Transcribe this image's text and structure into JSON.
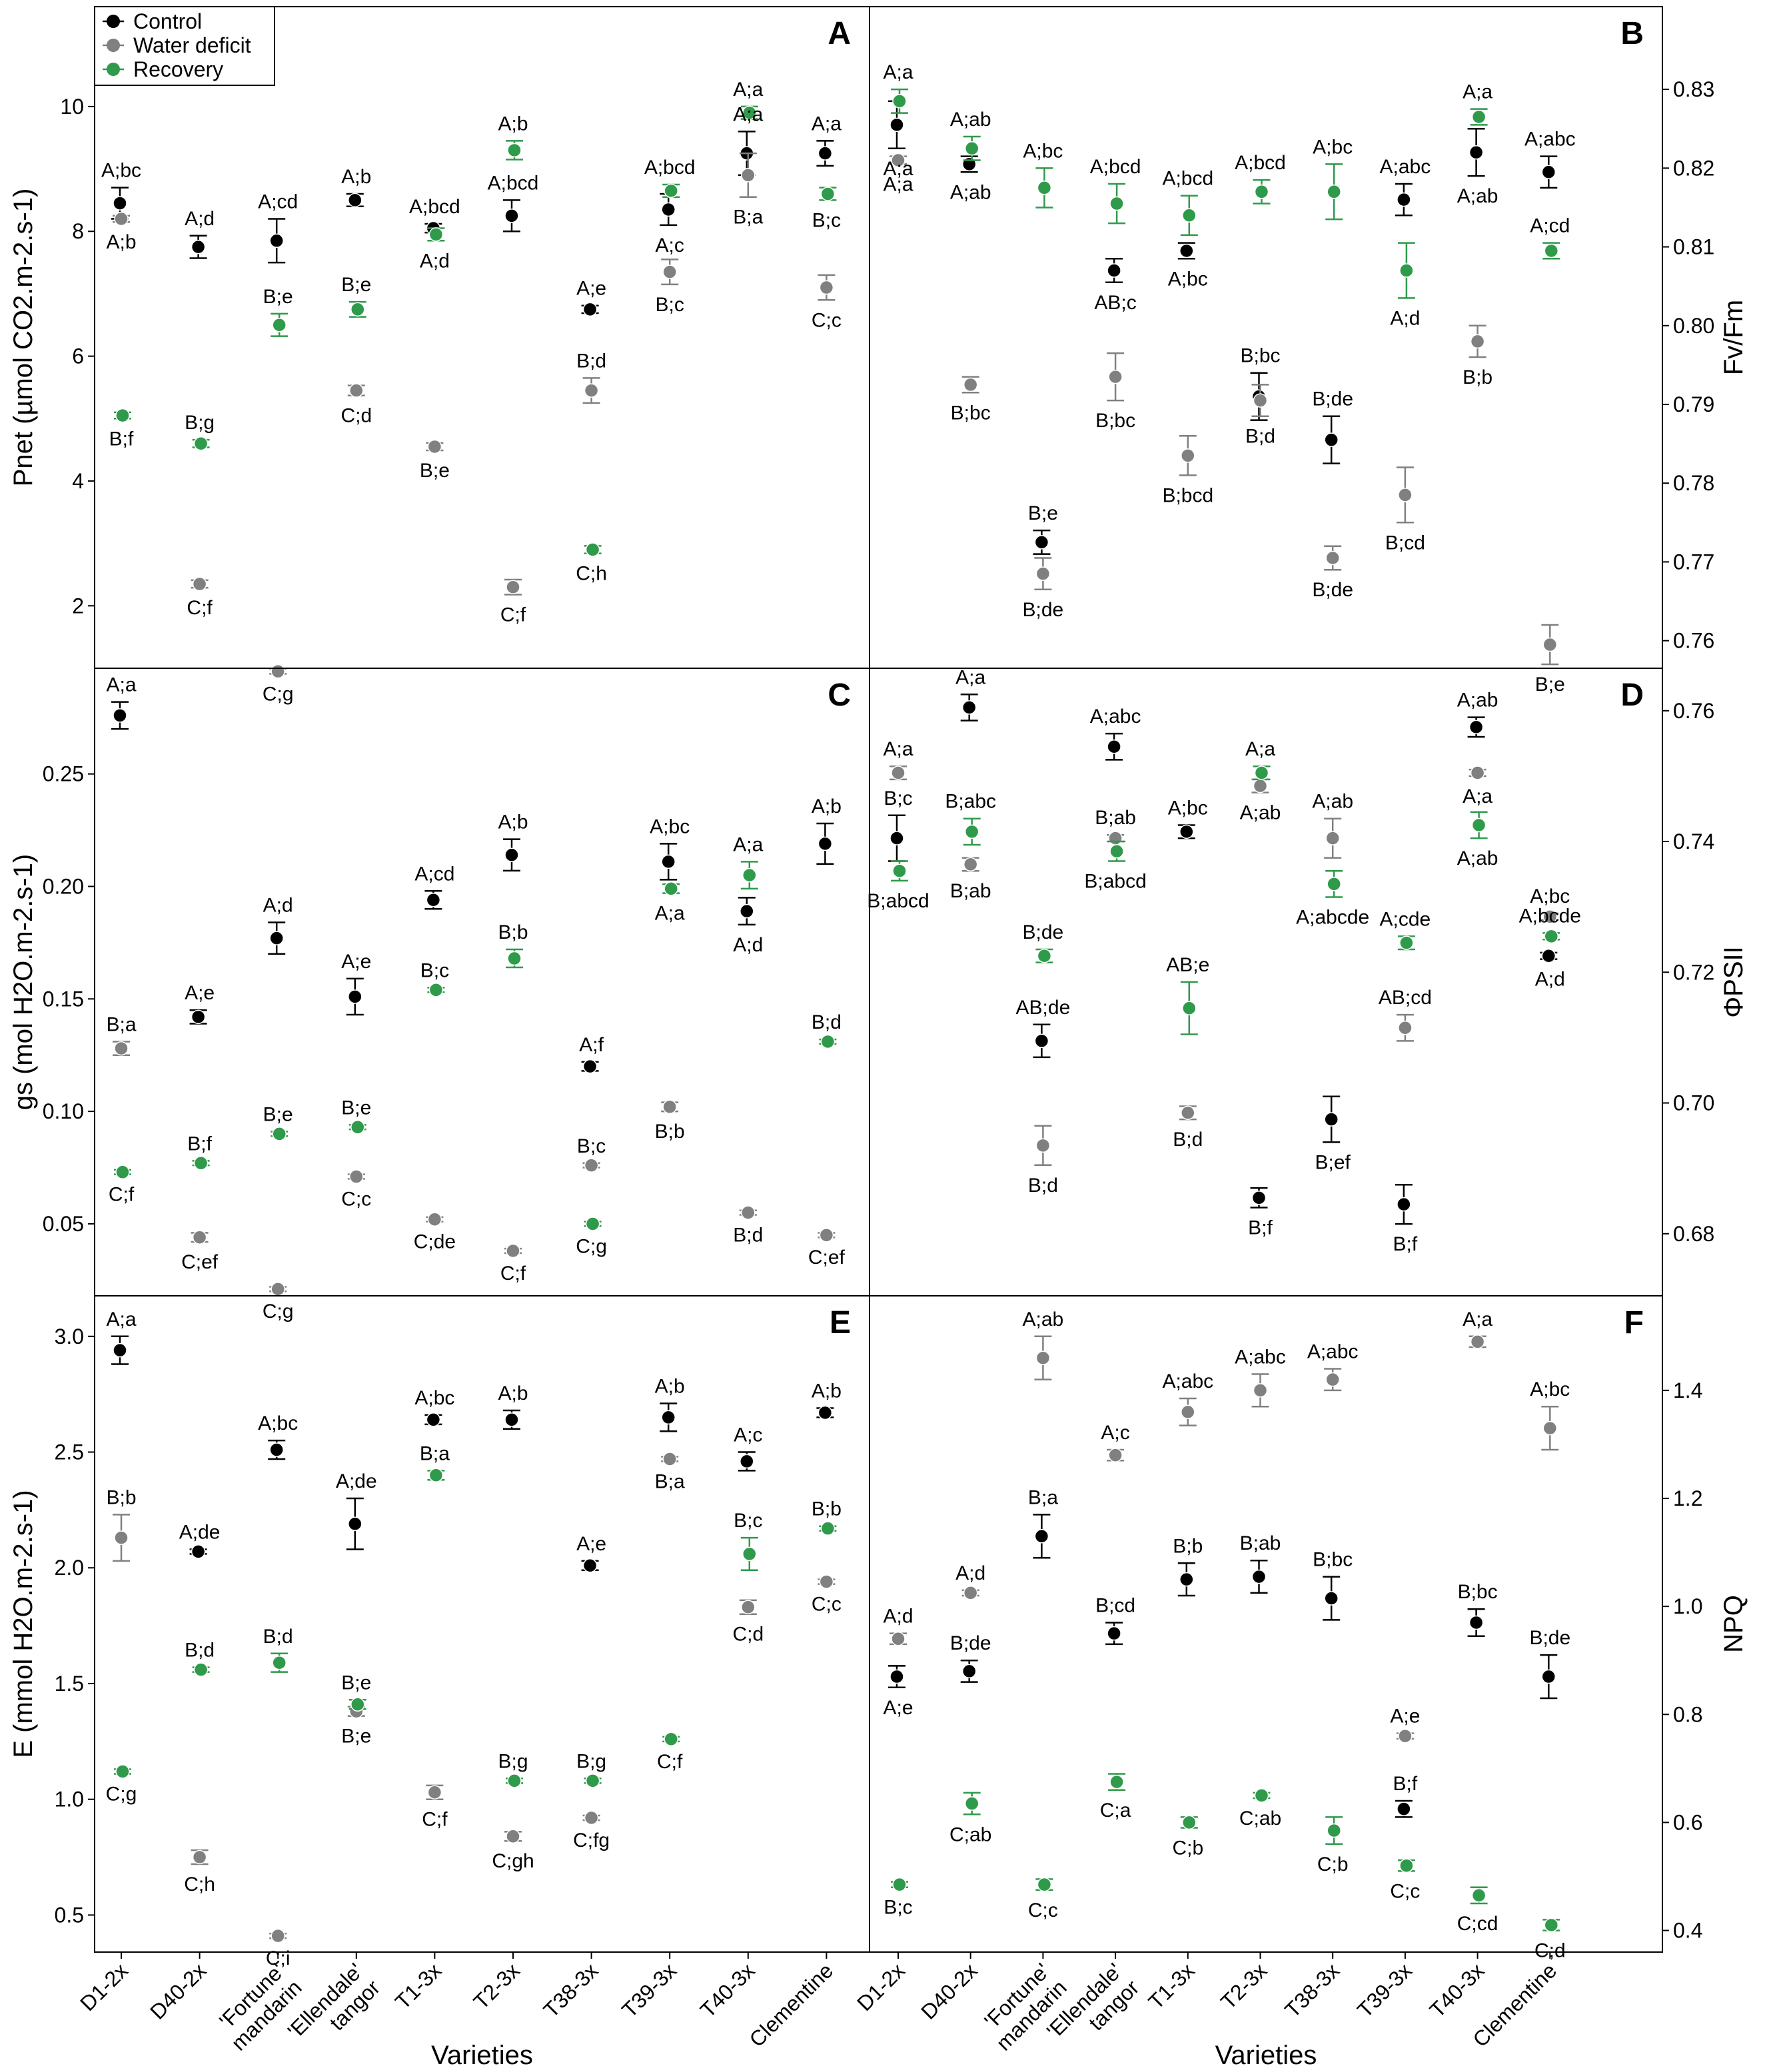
{
  "colors": {
    "control": "#000000",
    "water_deficit": "#808080",
    "recovery": "#2e9a4a"
  },
  "legend": {
    "placement": "top-left of panel A",
    "entries": [
      {
        "key": "control",
        "label": "Control"
      },
      {
        "key": "water_deficit",
        "label": "Water deficit"
      },
      {
        "key": "recovery",
        "label": "Recovery"
      }
    ]
  },
  "x_axis": {
    "title": "Varieties",
    "categories": [
      "D1-2x",
      "D40-2x",
      "'Fortune' mandarin",
      "'Ellendale' tangor",
      "T1-3x",
      "T2-3x",
      "T38-3x",
      "T39-3x",
      "T40-3x",
      "Clementine"
    ]
  },
  "chart_data": [
    {
      "panel": "A",
      "type": "scatter",
      "ylabel": "Pnet (µmol CO2.m-2.s-1)",
      "axis_side": "left",
      "ylim": [
        1,
        11.6
      ],
      "yticks": [
        2,
        4,
        6,
        8,
        10
      ],
      "series": [
        {
          "name": "Control",
          "values": [
            8.45,
            7.75,
            7.85,
            8.5,
            8.05,
            8.25,
            6.75,
            8.35,
            9.25,
            9.25
          ],
          "errors": [
            0.25,
            0.18,
            0.35,
            0.1,
            0.07,
            0.25,
            0.06,
            0.25,
            0.35,
            0.2
          ],
          "labels": [
            "A;bc",
            "A;d",
            "A;cd",
            "A;b",
            "A;bcd",
            "A;bcd",
            "A;e",
            "A;c",
            "A;a",
            "A;a"
          ]
        },
        {
          "name": "Water deficit",
          "values": [
            8.2,
            2.35,
            0.95,
            5.45,
            4.55,
            2.3,
            5.45,
            7.35,
            8.9,
            7.1
          ],
          "errors": [
            0.05,
            0.06,
            0.04,
            0.08,
            0.06,
            0.12,
            0.2,
            0.2,
            0.35,
            0.2
          ],
          "labels": [
            "A;b",
            "C;f",
            "C;g",
            "C;d",
            "B;e",
            "C;f",
            "B;d",
            "B;c",
            "B;a",
            "C;c"
          ]
        },
        {
          "name": "Recovery",
          "values": [
            5.05,
            4.6,
            6.5,
            6.75,
            7.95,
            9.3,
            2.9,
            8.65,
            9.9,
            8.6
          ],
          "errors": [
            0.05,
            0.06,
            0.18,
            0.12,
            0.1,
            0.15,
            0.06,
            0.1,
            0.1,
            0.1
          ],
          "labels": [
            "B;f",
            "B;g",
            "B;e",
            "B;e",
            "A;d",
            "A;b",
            "C;h",
            "A;bcd",
            "A;a",
            "B;c"
          ]
        }
      ]
    },
    {
      "panel": "B",
      "type": "scatter",
      "ylabel": "Fv/Fm",
      "axis_side": "right",
      "ylim": [
        0.7565,
        0.8405
      ],
      "yticks": [
        0.76,
        0.77,
        0.78,
        0.79,
        0.8,
        0.81,
        0.82,
        0.83
      ],
      "ytick_labels": [
        "0.76",
        "0.77",
        "0.78",
        "0.79",
        "0.80",
        "0.81",
        "0.82",
        "0.83"
      ],
      "series": [
        {
          "name": "Control",
          "values": [
            0.8255,
            0.8205,
            0.7725,
            0.807,
            0.8095,
            0.791,
            0.7855,
            0.816,
            0.822,
            0.8195
          ],
          "errors": [
            0.003,
            0.001,
            0.0015,
            0.0015,
            0.001,
            0.003,
            0.003,
            0.002,
            0.003,
            0.002
          ],
          "labels": [
            "A;a",
            "A;ab",
            "B;e",
            "AB;c",
            "A;bc",
            "B;bc",
            "B;de",
            "A;abc",
            "A;ab",
            "A;abc"
          ]
        },
        {
          "name": "Water deficit",
          "values": [
            0.821,
            0.7925,
            0.7685,
            0.7935,
            0.7835,
            0.7905,
            0.7705,
            0.7785,
            0.798,
            0.7595
          ],
          "errors": [
            0.0005,
            0.001,
            0.002,
            0.003,
            0.0025,
            0.002,
            0.0015,
            0.0035,
            0.002,
            0.0025
          ],
          "labels": [
            "A;a",
            "B;bc",
            "B;de",
            "B;bc",
            "B;bcd",
            "B;d",
            "B;de",
            "B;cd",
            "B;b",
            "B;e"
          ]
        },
        {
          "name": "Recovery",
          "values": [
            0.8285,
            0.8225,
            0.8175,
            0.8155,
            0.814,
            0.817,
            0.817,
            0.807,
            0.8265,
            0.8095
          ],
          "errors": [
            0.0015,
            0.0015,
            0.0025,
            0.0025,
            0.0025,
            0.0015,
            0.0035,
            0.0035,
            0.001,
            0.001
          ],
          "labels": [
            "A;a",
            "A;ab",
            "A;bc",
            "A;bcd",
            "A;bcd",
            "A;bcd",
            "A;bc",
            "A;d",
            "A;a",
            "A;cd"
          ]
        }
      ]
    },
    {
      "panel": "C",
      "type": "scatter",
      "ylabel": "gs (mol H2O.m-2.s-1)",
      "axis_side": "left",
      "ylim": [
        0.018,
        0.297
      ],
      "yticks": [
        0.05,
        0.1,
        0.15,
        0.2,
        0.25
      ],
      "ytick_labels": [
        "0.05",
        "0.10",
        "0.15",
        "0.20",
        "0.25"
      ],
      "series": [
        {
          "name": "Control",
          "values": [
            0.276,
            0.142,
            0.177,
            0.151,
            0.194,
            0.214,
            0.12,
            0.211,
            0.189,
            0.219
          ],
          "errors": [
            0.006,
            0.003,
            0.007,
            0.008,
            0.004,
            0.007,
            0.002,
            0.008,
            0.006,
            0.009
          ],
          "labels": [
            "A;a",
            "A;e",
            "A;d",
            "A;e",
            "A;cd",
            "A;b",
            "A;f",
            "A;bc",
            "A;d",
            "A;b"
          ]
        },
        {
          "name": "Water deficit",
          "values": [
            0.128,
            0.044,
            0.021,
            0.071,
            0.052,
            0.038,
            0.076,
            0.102,
            0.055,
            0.045
          ],
          "errors": [
            0.003,
            0.002,
            0.001,
            0.001,
            0.001,
            0.001,
            0.001,
            0.002,
            0.001,
            0.001
          ],
          "labels": [
            "B;a",
            "C;ef",
            "C;g",
            "C;c",
            "C;de",
            "C;f",
            "B;c",
            "B;b",
            "B;d",
            "C;ef"
          ]
        },
        {
          "name": "Recovery",
          "values": [
            0.073,
            0.077,
            0.09,
            0.093,
            0.154,
            0.168,
            0.05,
            0.199,
            0.205,
            0.131
          ],
          "errors": [
            0.001,
            0.001,
            0.001,
            0.001,
            0.001,
            0.004,
            0.001,
            0.002,
            0.006,
            0.001
          ],
          "labels": [
            "C;f",
            "B;f",
            "B;e",
            "B;e",
            "B;c",
            "B;b",
            "C;g",
            "A;a",
            "A;a",
            "B;d"
          ]
        }
      ]
    },
    {
      "panel": "D",
      "type": "scatter",
      "ylabel": "ΦPSII",
      "axis_side": "right",
      "ylim": [
        0.6705,
        0.7665
      ],
      "yticks": [
        0.68,
        0.7,
        0.72,
        0.74,
        0.76
      ],
      "ytick_labels": [
        "0.68",
        "0.70",
        "0.72",
        "0.74",
        "0.76"
      ],
      "series": [
        {
          "name": "Control",
          "values": [
            0.7405,
            0.7605,
            0.7095,
            0.7545,
            0.7415,
            0.6855,
            0.6975,
            0.6845,
            0.7575,
            0.7225
          ],
          "errors": [
            0.0035,
            0.002,
            0.0025,
            0.002,
            0.001,
            0.0015,
            0.0035,
            0.003,
            0.0015,
            0.0005
          ],
          "labels": [
            "B;c",
            "A;a",
            "AB;de",
            "A;abc",
            "A;bc",
            "B;f",
            "B;ef",
            "B;f",
            "A;ab",
            "A;d"
          ]
        },
        {
          "name": "Water deficit",
          "values": [
            0.7505,
            0.7365,
            0.6935,
            0.7405,
            0.6985,
            0.7485,
            0.7405,
            0.7115,
            0.7505,
            0.7285
          ],
          "errors": [
            0.001,
            0.001,
            0.003,
            0.0005,
            0.001,
            0.001,
            0.003,
            0.002,
            0.0005,
            0.0005
          ],
          "labels": [
            "A;a",
            "B;ab",
            "B;d",
            "B;ab",
            "B;d",
            "A;ab",
            "A;ab",
            "AB;cd",
            "A;a",
            "A;bc"
          ]
        },
        {
          "name": "Recovery",
          "values": [
            0.7355,
            0.7415,
            0.7225,
            0.7385,
            0.7145,
            0.7505,
            0.7335,
            0.7245,
            0.7425,
            0.7255
          ],
          "errors": [
            0.0015,
            0.002,
            0.001,
            0.0015,
            0.004,
            0.001,
            0.002,
            0.001,
            0.002,
            0.0005
          ],
          "labels": [
            "B;abcd",
            "B;abc",
            "B;de",
            "B;abcd",
            "AB;e",
            "A;a",
            "A;abcde",
            "A;cde",
            "A;ab",
            "A;bcde"
          ]
        }
      ]
    },
    {
      "panel": "E",
      "type": "scatter",
      "ylabel": "E (mmol H2O.m-2.s-1)",
      "axis_side": "left",
      "ylim": [
        0.34,
        3.175
      ],
      "yticks": [
        0.5,
        1.0,
        1.5,
        2.0,
        2.5,
        3.0
      ],
      "ytick_labels": [
        "0.5",
        "1.0",
        "1.5",
        "2.0",
        "2.5",
        "3.0"
      ],
      "series": [
        {
          "name": "Control",
          "values": [
            2.94,
            2.07,
            2.51,
            2.19,
            2.64,
            2.64,
            2.01,
            2.65,
            2.46,
            2.67
          ],
          "errors": [
            0.06,
            0.01,
            0.04,
            0.11,
            0.02,
            0.04,
            0.02,
            0.06,
            0.04,
            0.02
          ],
          "labels": [
            "A;a",
            "A;de",
            "A;bc",
            "A;de",
            "A;bc",
            "A;b",
            "A;e",
            "A;b",
            "A;c",
            "A;b"
          ]
        },
        {
          "name": "Water deficit",
          "values": [
            2.13,
            0.75,
            0.41,
            1.38,
            1.03,
            0.84,
            0.92,
            2.47,
            1.83,
            1.94
          ],
          "errors": [
            0.1,
            0.03,
            0.01,
            0.02,
            0.03,
            0.02,
            0.01,
            0.01,
            0.03,
            0.01
          ],
          "labels": [
            "B;b",
            "C;h",
            "C;i",
            "B;e",
            "C;f",
            "C;gh",
            "C;fg",
            "B;a",
            "C;d",
            "C;c"
          ]
        },
        {
          "name": "Recovery",
          "values": [
            1.12,
            1.56,
            1.59,
            1.41,
            2.4,
            1.08,
            1.08,
            1.26,
            2.06,
            2.17
          ],
          "errors": [
            0.01,
            0.01,
            0.04,
            0.02,
            0.02,
            0.01,
            0.01,
            0.01,
            0.07,
            0.01
          ],
          "labels": [
            "C;g",
            "B;d",
            "B;d",
            "B;e",
            "B;a",
            "B;g",
            "B;g",
            "C;f",
            "B;c",
            "B;b"
          ]
        }
      ]
    },
    {
      "panel": "F",
      "type": "scatter",
      "ylabel": "NPQ",
      "axis_side": "right",
      "ylim": [
        0.36,
        1.575
      ],
      "yticks": [
        0.4,
        0.6,
        0.8,
        1.0,
        1.2,
        1.4
      ],
      "ytick_labels": [
        "0.4",
        "0.6",
        "0.8",
        "1.0",
        "1.2",
        "1.4"
      ],
      "series": [
        {
          "name": "Control",
          "values": [
            0.87,
            0.88,
            1.13,
            0.95,
            1.05,
            1.055,
            1.015,
            0.625,
            0.97,
            0.87
          ],
          "errors": [
            0.02,
            0.02,
            0.04,
            0.02,
            0.03,
            0.03,
            0.04,
            0.015,
            0.025,
            0.04
          ],
          "labels": [
            "A;e",
            "B;de",
            "B;a",
            "B;cd",
            "B;b",
            "B;ab",
            "B;bc",
            "B;f",
            "B;bc",
            "B;de"
          ]
        },
        {
          "name": "Water deficit",
          "values": [
            0.94,
            1.025,
            1.46,
            1.28,
            1.36,
            1.4,
            1.42,
            0.76,
            1.49,
            1.33
          ],
          "errors": [
            0.01,
            0.005,
            0.04,
            0.01,
            0.025,
            0.03,
            0.02,
            0.005,
            0.01,
            0.04
          ],
          "labels": [
            "A;d",
            "A;d",
            "A;ab",
            "A;c",
            "A;abc",
            "A;abc",
            "A;abc",
            "A;e",
            "A;a",
            "A;bc"
          ]
        },
        {
          "name": "Recovery",
          "values": [
            0.485,
            0.635,
            0.485,
            0.675,
            0.6,
            0.65,
            0.585,
            0.52,
            0.465,
            0.41
          ],
          "errors": [
            0.005,
            0.02,
            0.01,
            0.015,
            0.01,
            0.005,
            0.025,
            0.01,
            0.015,
            0.01
          ],
          "labels": [
            "B;c",
            "C;ab",
            "C;c",
            "C;a",
            "C;b",
            "C;ab",
            "C;b",
            "C;c",
            "C;cd",
            "C;d"
          ]
        }
      ]
    }
  ]
}
